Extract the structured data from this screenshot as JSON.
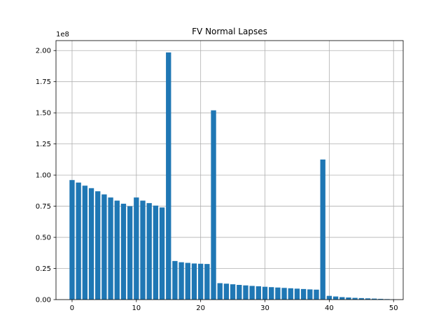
{
  "chart_data": {
    "type": "bar",
    "title": "FV Normal Lapses",
    "xlabel": "",
    "ylabel": "",
    "y_offset_text": "1e8",
    "x": [
      0,
      1,
      2,
      3,
      4,
      5,
      6,
      7,
      8,
      9,
      10,
      11,
      12,
      13,
      14,
      15,
      16,
      17,
      18,
      19,
      20,
      21,
      22,
      23,
      24,
      25,
      26,
      27,
      28,
      29,
      30,
      31,
      32,
      33,
      34,
      35,
      36,
      37,
      38,
      39,
      40,
      41,
      42,
      43,
      44,
      45,
      46,
      47,
      48,
      49,
      50
    ],
    "values": [
      96000000,
      94000000,
      91500000,
      89500000,
      87000000,
      84500000,
      82000000,
      79500000,
      77000000,
      75000000,
      82000000,
      79500000,
      77500000,
      75500000,
      74000000,
      198500000,
      31000000,
      30000000,
      29500000,
      29000000,
      28800000,
      28600000,
      152000000,
      13200000,
      12800000,
      12300000,
      11800000,
      11400000,
      11000000,
      10700000,
      10300000,
      10000000,
      9700000,
      9400000,
      9100000,
      8800000,
      8500000,
      8200000,
      8000000,
      112500000,
      3000000,
      2500000,
      2000000,
      1700000,
      1400000,
      1200000,
      1000000,
      800000,
      600000,
      400000,
      200000
    ],
    "xlim": [
      -2.5,
      51.5
    ],
    "ylim": [
      0,
      208000000
    ],
    "xticks": [
      0,
      10,
      20,
      30,
      40,
      50
    ],
    "xtick_labels": [
      "0",
      "10",
      "20",
      "30",
      "40",
      "50"
    ],
    "yticks": [
      0,
      25000000,
      50000000,
      75000000,
      100000000,
      125000000,
      150000000,
      175000000,
      200000000
    ],
    "ytick_labels": [
      "0.00",
      "0.25",
      "0.50",
      "0.75",
      "1.00",
      "1.25",
      "1.50",
      "1.75",
      "2.00"
    ],
    "grid": true,
    "bar_color": "#1f77b4",
    "grid_color": "#b0b0b0"
  }
}
